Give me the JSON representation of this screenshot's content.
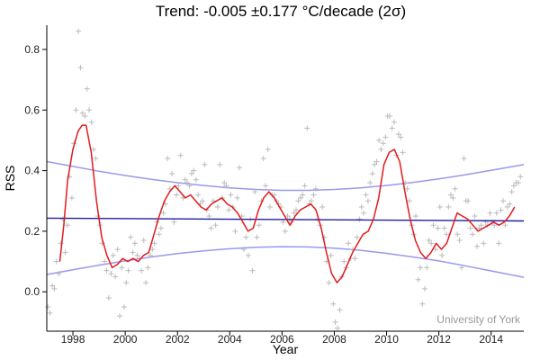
{
  "chart_data": {
    "type": "line",
    "title": "Trend: -0.005 ±0.177 °C/decade (2σ)",
    "xlabel": "Year",
    "ylabel": "RSS",
    "xlim": [
      1997.0,
      2015.25
    ],
    "ylim": [
      -0.13,
      0.88
    ],
    "xticks": [
      1998,
      2000,
      2002,
      2004,
      2006,
      2008,
      2010,
      2012,
      2014
    ],
    "yticks": [
      0.0,
      0.2,
      0.4,
      0.6,
      0.8
    ],
    "xtick_labels": [
      "1998",
      "2000",
      "2002",
      "2004",
      "2006",
      "2008",
      "2010",
      "2012",
      "2014"
    ],
    "ytick_labels": [
      "0.0",
      "0.2",
      "0.4",
      "0.6",
      "0.8"
    ],
    "grid": false,
    "credit": "University of York",
    "colors": {
      "monthly": "#bbbbbb",
      "smoothed": "#e31a1c",
      "trend": "#1f1fa0",
      "confidence": "#9999ee"
    },
    "series": [
      {
        "key": "monthly",
        "style": "markers",
        "x": [
          1997.04,
          1997.12,
          1997.21,
          1997.29,
          1997.37,
          1997.46,
          1997.54,
          1997.62,
          1997.71,
          1997.79,
          1997.87,
          1997.96,
          1998.04,
          1998.12,
          1998.21,
          1998.29,
          1998.37,
          1998.46,
          1998.54,
          1998.62,
          1998.71,
          1998.79,
          1998.87,
          1998.96,
          1999.04,
          1999.12,
          1999.21,
          1999.29,
          1999.37,
          1999.46,
          1999.54,
          1999.62,
          1999.71,
          1999.79,
          1999.87,
          1999.96,
          2000.04,
          2000.12,
          2000.21,
          2000.29,
          2000.37,
          2000.46,
          2000.54,
          2000.62,
          2000.71,
          2000.79,
          2000.87,
          2000.96,
          2001.04,
          2001.12,
          2001.21,
          2001.29,
          2001.37,
          2001.46,
          2001.54,
          2001.62,
          2001.71,
          2001.79,
          2001.87,
          2001.96,
          2002.04,
          2002.12,
          2002.21,
          2002.29,
          2002.37,
          2002.46,
          2002.54,
          2002.62,
          2002.71,
          2002.79,
          2002.87,
          2002.96,
          2003.04,
          2003.12,
          2003.21,
          2003.29,
          2003.37,
          2003.46,
          2003.54,
          2003.62,
          2003.71,
          2003.79,
          2003.87,
          2003.96,
          2004.04,
          2004.12,
          2004.21,
          2004.29,
          2004.37,
          2004.46,
          2004.54,
          2004.62,
          2004.71,
          2004.79,
          2004.87,
          2004.96,
          2005.04,
          2005.12,
          2005.21,
          2005.29,
          2005.37,
          2005.46,
          2005.54,
          2005.62,
          2005.71,
          2005.79,
          2005.87,
          2005.96,
          2006.04,
          2006.12,
          2006.21,
          2006.29,
          2006.37,
          2006.46,
          2006.54,
          2006.62,
          2006.71,
          2006.79,
          2006.87,
          2006.96,
          2007.04,
          2007.12,
          2007.21,
          2007.29,
          2007.37,
          2007.46,
          2007.54,
          2007.62,
          2007.71,
          2007.79,
          2007.87,
          2007.96,
          2008.04,
          2008.12,
          2008.21,
          2008.29,
          2008.37,
          2008.46,
          2008.54,
          2008.62,
          2008.71,
          2008.79,
          2008.87,
          2008.96,
          2009.04,
          2009.12,
          2009.21,
          2009.29,
          2009.37,
          2009.46,
          2009.54,
          2009.62,
          2009.71,
          2009.79,
          2009.87,
          2009.96,
          2010.04,
          2010.12,
          2010.21,
          2010.29,
          2010.37,
          2010.46,
          2010.54,
          2010.62,
          2010.71,
          2010.79,
          2010.87,
          2010.96,
          2011.04,
          2011.12,
          2011.21,
          2011.29,
          2011.37,
          2011.46,
          2011.54,
          2011.62,
          2011.71,
          2011.79,
          2011.87,
          2011.96,
          2012.04,
          2012.12,
          2012.21,
          2012.29,
          2012.37,
          2012.46,
          2012.54,
          2012.62,
          2012.71,
          2012.79,
          2012.87,
          2012.96,
          2013.04,
          2013.12,
          2013.21,
          2013.29,
          2013.37,
          2013.46,
          2013.54,
          2013.62,
          2013.71,
          2013.79,
          2013.87,
          2013.96,
          2014.04,
          2014.12,
          2014.21,
          2014.29,
          2014.37,
          2014.46,
          2014.54,
          2014.62,
          2014.71,
          2014.79,
          2014.87,
          2014.96,
          2015.04,
          2015.12
        ],
        "y": [
          -0.05,
          -0.07,
          0.02,
          0.01,
          0.1,
          0.06,
          0.16,
          0.24,
          0.13,
          0.22,
          0.38,
          0.31,
          0.49,
          0.6,
          0.86,
          0.74,
          0.59,
          0.58,
          0.67,
          0.6,
          0.56,
          0.47,
          0.44,
          0.25,
          0.22,
          0.16,
          0.1,
          0.07,
          -0.02,
          0.06,
          0.12,
          0.05,
          0.14,
          -0.08,
          0.08,
          -0.05,
          0.03,
          0.07,
          0.18,
          0.13,
          0.16,
          0.12,
          0.11,
          0.07,
          0.17,
          0.03,
          0.08,
          0.12,
          0.14,
          0.16,
          0.23,
          0.19,
          0.21,
          0.26,
          0.29,
          0.44,
          0.34,
          0.39,
          0.23,
          0.32,
          0.35,
          0.45,
          0.31,
          0.37,
          0.36,
          0.35,
          0.39,
          0.4,
          0.37,
          0.32,
          0.29,
          0.3,
          0.42,
          0.27,
          0.25,
          0.21,
          0.3,
          0.22,
          0.28,
          0.42,
          0.31,
          0.36,
          0.35,
          0.27,
          0.32,
          0.28,
          0.2,
          0.31,
          0.41,
          0.25,
          0.14,
          0.18,
          0.12,
          0.24,
          0.07,
          0.33,
          0.18,
          0.22,
          0.3,
          0.44,
          0.35,
          0.47,
          0.28,
          0.32,
          0.32,
          0.3,
          0.29,
          0.28,
          0.23,
          0.2,
          0.25,
          0.24,
          0.23,
          0.26,
          0.27,
          0.3,
          0.31,
          0.32,
          0.35,
          0.54,
          0.29,
          0.3,
          0.32,
          0.34,
          0.24,
          0.22,
          0.28,
          0.18,
          0.1,
          0.03,
          0.12,
          -0.04,
          -0.1,
          -0.12,
          -0.06,
          0.05,
          0.1,
          0.08,
          0.16,
          0.11,
          0.14,
          0.11,
          0.18,
          0.24,
          0.28,
          0.26,
          0.32,
          0.3,
          0.36,
          0.39,
          0.42,
          0.43,
          0.5,
          0.47,
          0.49,
          0.51,
          0.58,
          0.58,
          0.54,
          0.56,
          0.45,
          0.52,
          0.51,
          0.46,
          0.36,
          0.34,
          0.3,
          0.22,
          0.19,
          0.25,
          0.04,
          0.08,
          -0.04,
          0.01,
          0.08,
          0.17,
          0.16,
          0.22,
          0.14,
          0.21,
          0.28,
          0.12,
          0.21,
          0.19,
          0.28,
          0.32,
          0.31,
          0.34,
          0.19,
          0.17,
          0.08,
          0.44,
          0.3,
          0.3,
          0.21,
          0.19,
          0.25,
          0.15,
          0.21,
          0.22,
          0.16,
          0.23,
          0.22,
          0.26,
          0.23,
          0.22,
          0.26,
          0.16,
          0.27,
          0.3,
          0.22,
          0.28,
          0.29,
          0.33,
          0.35,
          0.36,
          0.36,
          0.38
        ]
      },
      {
        "key": "smoothed",
        "style": "line",
        "x": [
          1997.5,
          1997.65,
          1997.8,
          1998.0,
          1998.2,
          1998.35,
          1998.5,
          1998.7,
          1998.9,
          1999.1,
          1999.3,
          1999.5,
          1999.7,
          1999.9,
          2000.1,
          2000.3,
          2000.5,
          2000.7,
          2000.9,
          2001.1,
          2001.3,
          2001.5,
          2001.7,
          2001.9,
          2002.1,
          2002.3,
          2002.5,
          2002.7,
          2002.9,
          2003.1,
          2003.3,
          2003.5,
          2003.7,
          2003.9,
          2004.1,
          2004.3,
          2004.5,
          2004.7,
          2004.9,
          2005.1,
          2005.3,
          2005.5,
          2005.7,
          2005.9,
          2006.1,
          2006.3,
          2006.5,
          2006.7,
          2006.9,
          2007.1,
          2007.3,
          2007.5,
          2007.7,
          2007.9,
          2008.1,
          2008.3,
          2008.5,
          2008.7,
          2008.9,
          2009.1,
          2009.3,
          2009.5,
          2009.7,
          2009.9,
          2010.1,
          2010.3,
          2010.5,
          2010.7,
          2010.9,
          2011.1,
          2011.3,
          2011.5,
          2011.7,
          2011.9,
          2012.1,
          2012.3,
          2012.5,
          2012.7,
          2012.9,
          2013.1,
          2013.3,
          2013.5,
          2013.7,
          2013.9,
          2014.1,
          2014.3,
          2014.5,
          2014.7,
          2014.9
        ],
        "y": [
          0.1,
          0.22,
          0.37,
          0.47,
          0.53,
          0.55,
          0.55,
          0.46,
          0.3,
          0.18,
          0.12,
          0.08,
          0.09,
          0.11,
          0.1,
          0.11,
          0.1,
          0.12,
          0.13,
          0.19,
          0.25,
          0.3,
          0.33,
          0.35,
          0.33,
          0.31,
          0.32,
          0.3,
          0.28,
          0.27,
          0.29,
          0.3,
          0.31,
          0.29,
          0.28,
          0.26,
          0.23,
          0.2,
          0.21,
          0.27,
          0.31,
          0.33,
          0.31,
          0.28,
          0.25,
          0.22,
          0.25,
          0.27,
          0.28,
          0.29,
          0.27,
          0.21,
          0.13,
          0.06,
          0.03,
          0.05,
          0.09,
          0.13,
          0.16,
          0.19,
          0.2,
          0.24,
          0.31,
          0.42,
          0.46,
          0.47,
          0.43,
          0.33,
          0.24,
          0.17,
          0.13,
          0.11,
          0.13,
          0.16,
          0.14,
          0.16,
          0.21,
          0.26,
          0.25,
          0.24,
          0.22,
          0.2,
          0.21,
          0.22,
          0.23,
          0.22,
          0.23,
          0.25,
          0.28
        ]
      },
      {
        "key": "trend",
        "style": "line",
        "x": [
          1997.0,
          2015.25
        ],
        "y": [
          0.243,
          0.234
        ]
      },
      {
        "key": "upper_confidence",
        "style": "line",
        "x": [
          1997.0,
          1998.0,
          1999.0,
          2000.0,
          2001.0,
          2002.0,
          2003.0,
          2004.0,
          2005.0,
          2006.0,
          2007.0,
          2008.0,
          2009.0,
          2010.0,
          2011.0,
          2012.0,
          2013.0,
          2014.0,
          2015.25
        ],
        "y": [
          0.43,
          0.414,
          0.398,
          0.384,
          0.371,
          0.36,
          0.351,
          0.343,
          0.338,
          0.335,
          0.335,
          0.338,
          0.343,
          0.351,
          0.361,
          0.373,
          0.386,
          0.401,
          0.42
        ]
      },
      {
        "key": "lower_confidence",
        "style": "line",
        "x": [
          1997.0,
          1998.0,
          1999.0,
          2000.0,
          2001.0,
          2002.0,
          2003.0,
          2004.0,
          2005.0,
          2006.0,
          2007.0,
          2008.0,
          2009.0,
          2010.0,
          2011.0,
          2012.0,
          2013.0,
          2014.0,
          2015.25
        ],
        "y": [
          0.057,
          0.073,
          0.088,
          0.102,
          0.115,
          0.126,
          0.135,
          0.142,
          0.147,
          0.149,
          0.148,
          0.144,
          0.137,
          0.127,
          0.115,
          0.102,
          0.086,
          0.069,
          0.048
        ]
      }
    ]
  }
}
